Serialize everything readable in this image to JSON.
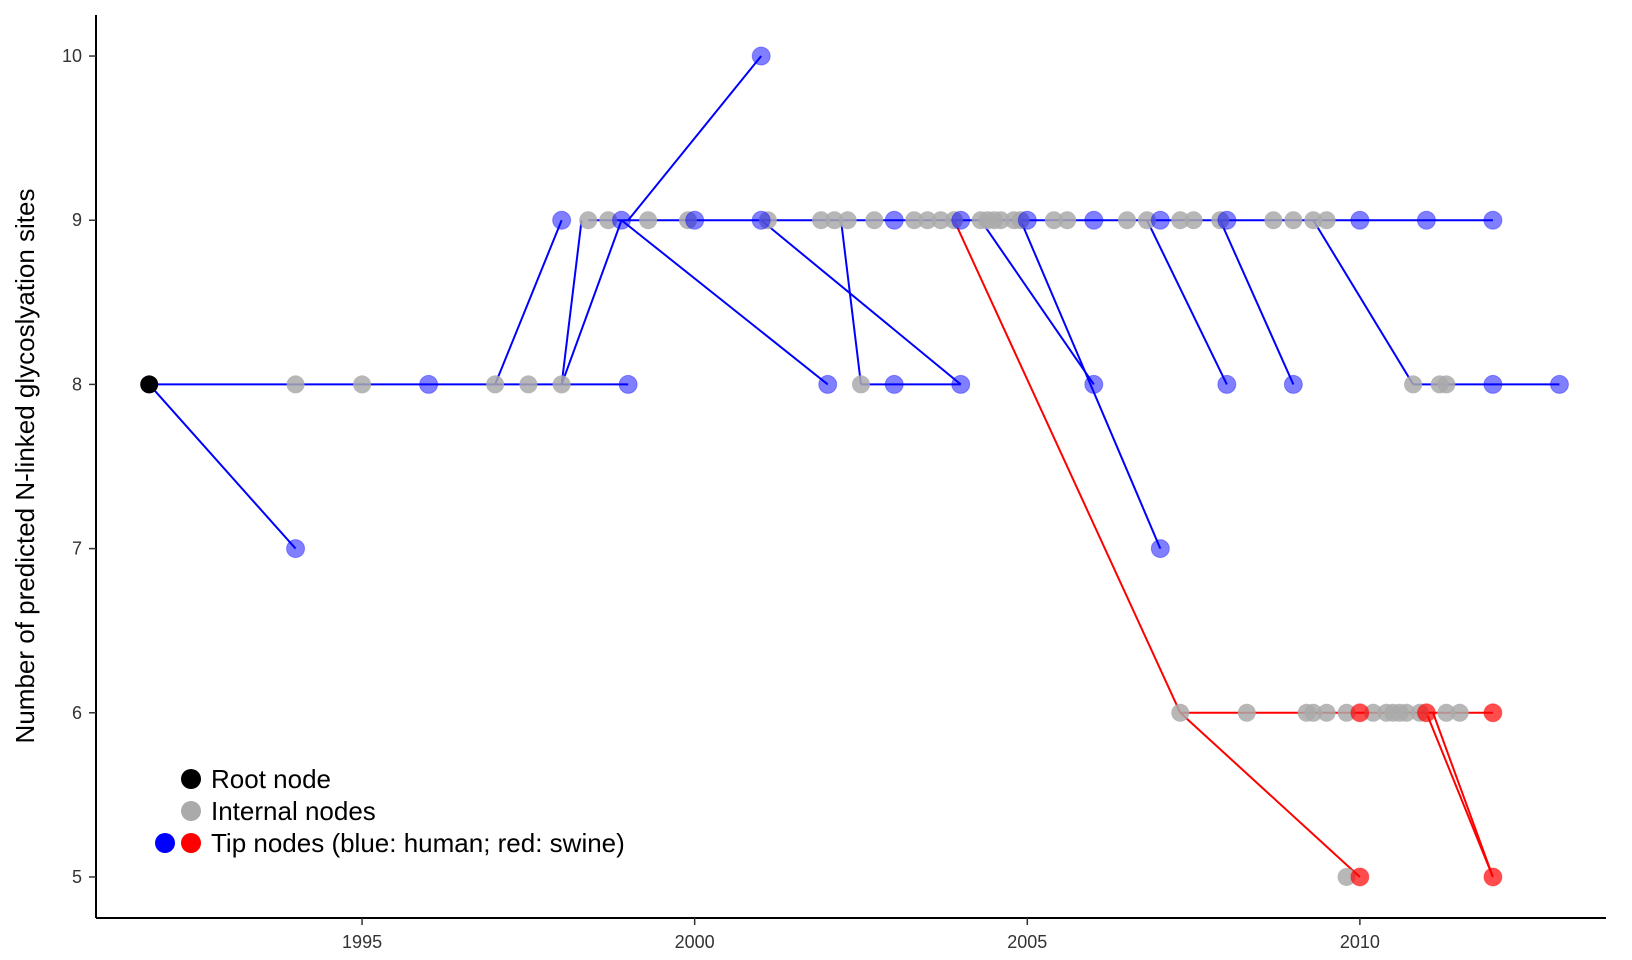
{
  "chart_data": {
    "type": "scatter",
    "title": "",
    "xlabel": "",
    "ylabel": "Number of predicted N-linked glycoslyation sites",
    "xlim": [
      1991.0,
      2013.7
    ],
    "ylim": [
      4.75,
      10.25
    ],
    "x_ticks": [
      1995,
      2000,
      2005,
      2010
    ],
    "x_tick_labels": [
      "1995",
      "2000",
      "2005",
      "2010"
    ],
    "y_ticks": [
      5,
      6,
      7,
      8,
      9,
      10
    ],
    "y_tick_labels": [
      "5",
      "6",
      "7",
      "8",
      "9",
      "10"
    ],
    "grid": false,
    "legend_position": "bottom-left",
    "colors": {
      "root": "#000000",
      "internal": "#aaaaaa",
      "human": "#0000ff",
      "swine": "#ff0000",
      "human_tip_fill": "#6b6bff",
      "swine_tip_fill": "#ff4545"
    },
    "legend": [
      {
        "label": "Root node",
        "swatches": [
          "root"
        ]
      },
      {
        "label": "Internal nodes",
        "swatches": [
          "internal"
        ]
      },
      {
        "label": "Tip nodes (blue: human; red: swine)",
        "swatches": [
          "human",
          "swine"
        ]
      }
    ],
    "edges": [
      {
        "from": [
          1991.8,
          8
        ],
        "to": [
          1996.0,
          8
        ],
        "color": "human"
      },
      {
        "from": [
          1991.8,
          8
        ],
        "to": [
          1994.0,
          7
        ],
        "color": "human"
      },
      {
        "from": [
          1996.0,
          8
        ],
        "to": [
          1999.0,
          8
        ],
        "color": "human"
      },
      {
        "from": [
          1997.0,
          8
        ],
        "to": [
          1998.0,
          9
        ],
        "color": "human"
      },
      {
        "from": [
          1998.0,
          8
        ],
        "to": [
          1998.3,
          9
        ],
        "color": "human"
      },
      {
        "from": [
          1998.0,
          8
        ],
        "to": [
          1998.9,
          9
        ],
        "color": "human"
      },
      {
        "from": [
          1998.4,
          9
        ],
        "to": [
          2012.0,
          9
        ],
        "color": "human"
      },
      {
        "from": [
          1999.0,
          9
        ],
        "to": [
          2001.0,
          10
        ],
        "color": "human"
      },
      {
        "from": [
          1998.9,
          9
        ],
        "to": [
          2002.0,
          8
        ],
        "color": "human"
      },
      {
        "from": [
          2001.0,
          9
        ],
        "to": [
          2004.0,
          8
        ],
        "color": "human"
      },
      {
        "from": [
          2002.2,
          9
        ],
        "to": [
          2002.5,
          8
        ],
        "color": "human"
      },
      {
        "from": [
          2002.5,
          8
        ],
        "to": [
          2004.0,
          8
        ],
        "color": "human"
      },
      {
        "from": [
          2004.3,
          9
        ],
        "to": [
          2006.0,
          8
        ],
        "color": "human"
      },
      {
        "from": [
          2004.9,
          9
        ],
        "to": [
          2007.0,
          7
        ],
        "color": "human"
      },
      {
        "from": [
          2006.8,
          9
        ],
        "to": [
          2008.0,
          8
        ],
        "color": "human"
      },
      {
        "from": [
          2007.9,
          9
        ],
        "to": [
          2009.0,
          8
        ],
        "color": "human"
      },
      {
        "from": [
          2009.3,
          9
        ],
        "to": [
          2010.8,
          8
        ],
        "color": "human"
      },
      {
        "from": [
          2010.8,
          8
        ],
        "to": [
          2013.0,
          8
        ],
        "color": "human"
      },
      {
        "from": [
          2003.9,
          9
        ],
        "to": [
          2007.3,
          6
        ],
        "color": "swine"
      },
      {
        "from": [
          2007.3,
          6
        ],
        "to": [
          2012.0,
          6
        ],
        "color": "swine"
      },
      {
        "from": [
          2007.3,
          6
        ],
        "to": [
          2010.0,
          5
        ],
        "color": "swine"
      },
      {
        "from": [
          2011.0,
          6
        ],
        "to": [
          2012.0,
          5
        ],
        "color": "swine"
      },
      {
        "from": [
          2011.1,
          6
        ],
        "to": [
          2012.0,
          5
        ],
        "color": "swine"
      }
    ],
    "nodes": {
      "root": [
        [
          1991.8,
          8
        ]
      ],
      "internal": [
        [
          1994.0,
          8
        ],
        [
          1995.0,
          8
        ],
        [
          1997.0,
          8
        ],
        [
          1997.5,
          8
        ],
        [
          1998.0,
          8
        ],
        [
          1998.4,
          9
        ],
        [
          1998.7,
          9
        ],
        [
          1999.3,
          9
        ],
        [
          1999.9,
          9
        ],
        [
          2001.1,
          9
        ],
        [
          2001.9,
          9
        ],
        [
          2002.1,
          9
        ],
        [
          2002.3,
          9
        ],
        [
          2002.7,
          9
        ],
        [
          2003.3,
          9
        ],
        [
          2003.5,
          9
        ],
        [
          2003.7,
          9
        ],
        [
          2003.9,
          9
        ],
        [
          2004.3,
          9
        ],
        [
          2004.4,
          9
        ],
        [
          2004.5,
          9
        ],
        [
          2004.6,
          9
        ],
        [
          2004.8,
          9
        ],
        [
          2004.9,
          9
        ],
        [
          2005.4,
          9
        ],
        [
          2005.6,
          9
        ],
        [
          2006.5,
          9
        ],
        [
          2006.8,
          9
        ],
        [
          2007.3,
          9
        ],
        [
          2007.5,
          9
        ],
        [
          2007.9,
          9
        ],
        [
          2008.7,
          9
        ],
        [
          2009.0,
          9
        ],
        [
          2009.3,
          9
        ],
        [
          2009.5,
          9
        ],
        [
          2002.5,
          8
        ],
        [
          2010.8,
          8
        ],
        [
          2011.2,
          8
        ],
        [
          2011.3,
          8
        ],
        [
          2007.3,
          6
        ],
        [
          2008.3,
          6
        ],
        [
          2009.2,
          6
        ],
        [
          2009.3,
          6
        ],
        [
          2009.5,
          6
        ],
        [
          2009.8,
          6
        ],
        [
          2010.2,
          6
        ],
        [
          2010.4,
          6
        ],
        [
          2010.5,
          6
        ],
        [
          2010.6,
          6
        ],
        [
          2010.7,
          6
        ],
        [
          2010.9,
          6
        ],
        [
          2011.3,
          6
        ],
        [
          2011.5,
          6
        ],
        [
          2009.8,
          5
        ]
      ],
      "human_tips": [
        [
          1994.0,
          7
        ],
        [
          1996.0,
          8
        ],
        [
          1999.0,
          8
        ],
        [
          1998.0,
          9
        ],
        [
          1998.9,
          9
        ],
        [
          2000.0,
          9
        ],
        [
          2001.0,
          9
        ],
        [
          2001.0,
          10
        ],
        [
          2002.0,
          8
        ],
        [
          2003.0,
          8
        ],
        [
          2004.0,
          8
        ],
        [
          2003.0,
          9
        ],
        [
          2004.0,
          9
        ],
        [
          2005.0,
          9
        ],
        [
          2006.0,
          9
        ],
        [
          2007.0,
          9
        ],
        [
          2008.0,
          9
        ],
        [
          2006.0,
          8
        ],
        [
          2007.0,
          7
        ],
        [
          2008.0,
          8
        ],
        [
          2009.0,
          8
        ],
        [
          2010.0,
          9
        ],
        [
          2011.0,
          9
        ],
        [
          2012.0,
          9
        ],
        [
          2012.0,
          8
        ],
        [
          2013.0,
          8
        ]
      ],
      "swine_tips": [
        [
          2010.0,
          6
        ],
        [
          2011.0,
          6
        ],
        [
          2012.0,
          6
        ],
        [
          2010.0,
          5
        ],
        [
          2012.0,
          5
        ]
      ]
    }
  }
}
